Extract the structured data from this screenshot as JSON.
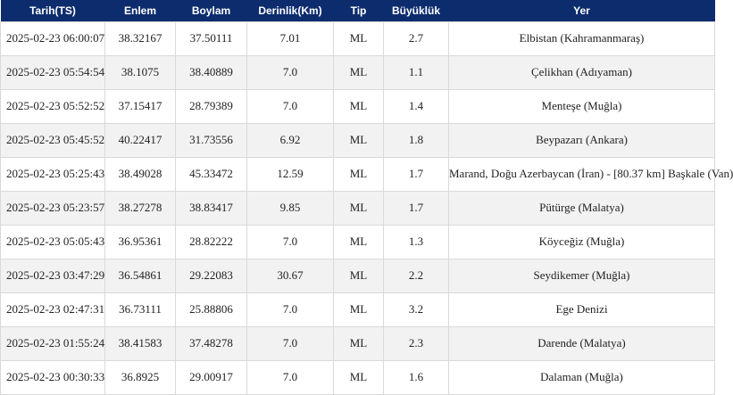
{
  "table": {
    "headers": {
      "date": "Tarih(TS)",
      "lat": "Enlem",
      "lon": "Boylam",
      "depth": "Derinlik(Km)",
      "type": "Tip",
      "mag": "Büyüklük",
      "place": "Yer"
    },
    "rows": [
      {
        "date": "2025-02-23 06:00:07",
        "lat": "38.32167",
        "lon": "37.50111",
        "depth": "7.01",
        "type": "ML",
        "mag": "2.7",
        "place": "Elbistan (Kahramanmaraş)"
      },
      {
        "date": "2025-02-23 05:54:54",
        "lat": "38.1075",
        "lon": "38.40889",
        "depth": "7.0",
        "type": "ML",
        "mag": "1.1",
        "place": "Çelikhan (Adıyaman)"
      },
      {
        "date": "2025-02-23 05:52:52",
        "lat": "37.15417",
        "lon": "28.79389",
        "depth": "7.0",
        "type": "ML",
        "mag": "1.4",
        "place": "Menteşe (Muğla)"
      },
      {
        "date": "2025-02-23 05:45:52",
        "lat": "40.22417",
        "lon": "31.73556",
        "depth": "6.92",
        "type": "ML",
        "mag": "1.8",
        "place": "Beypazarı (Ankara)"
      },
      {
        "date": "2025-02-23 05:25:43",
        "lat": "38.49028",
        "lon": "45.33472",
        "depth": "12.59",
        "type": "ML",
        "mag": "1.7",
        "place": "Marand, Doğu Azerbaycan (İran) - [80.37 km] Başkale (Van)"
      },
      {
        "date": "2025-02-23 05:23:57",
        "lat": "38.27278",
        "lon": "38.83417",
        "depth": "9.85",
        "type": "ML",
        "mag": "1.7",
        "place": "Pütürge (Malatya)"
      },
      {
        "date": "2025-02-23 05:05:43",
        "lat": "36.95361",
        "lon": "28.82222",
        "depth": "7.0",
        "type": "ML",
        "mag": "1.3",
        "place": "Köyceğiz (Muğla)"
      },
      {
        "date": "2025-02-23 03:47:29",
        "lat": "36.54861",
        "lon": "29.22083",
        "depth": "30.67",
        "type": "ML",
        "mag": "2.2",
        "place": "Seydikemer (Muğla)"
      },
      {
        "date": "2025-02-23 02:47:31",
        "lat": "36.73111",
        "lon": "25.88806",
        "depth": "7.0",
        "type": "ML",
        "mag": "3.2",
        "place": "Ege Denizi"
      },
      {
        "date": "2025-02-23 01:55:24",
        "lat": "38.41583",
        "lon": "37.48278",
        "depth": "7.0",
        "type": "ML",
        "mag": "2.3",
        "place": "Darende (Malatya)"
      },
      {
        "date": "2025-02-23 00:30:33",
        "lat": "36.8925",
        "lon": "29.00917",
        "depth": "7.0",
        "type": "ML",
        "mag": "1.6",
        "place": "Dalaman (Muğla)"
      }
    ]
  }
}
